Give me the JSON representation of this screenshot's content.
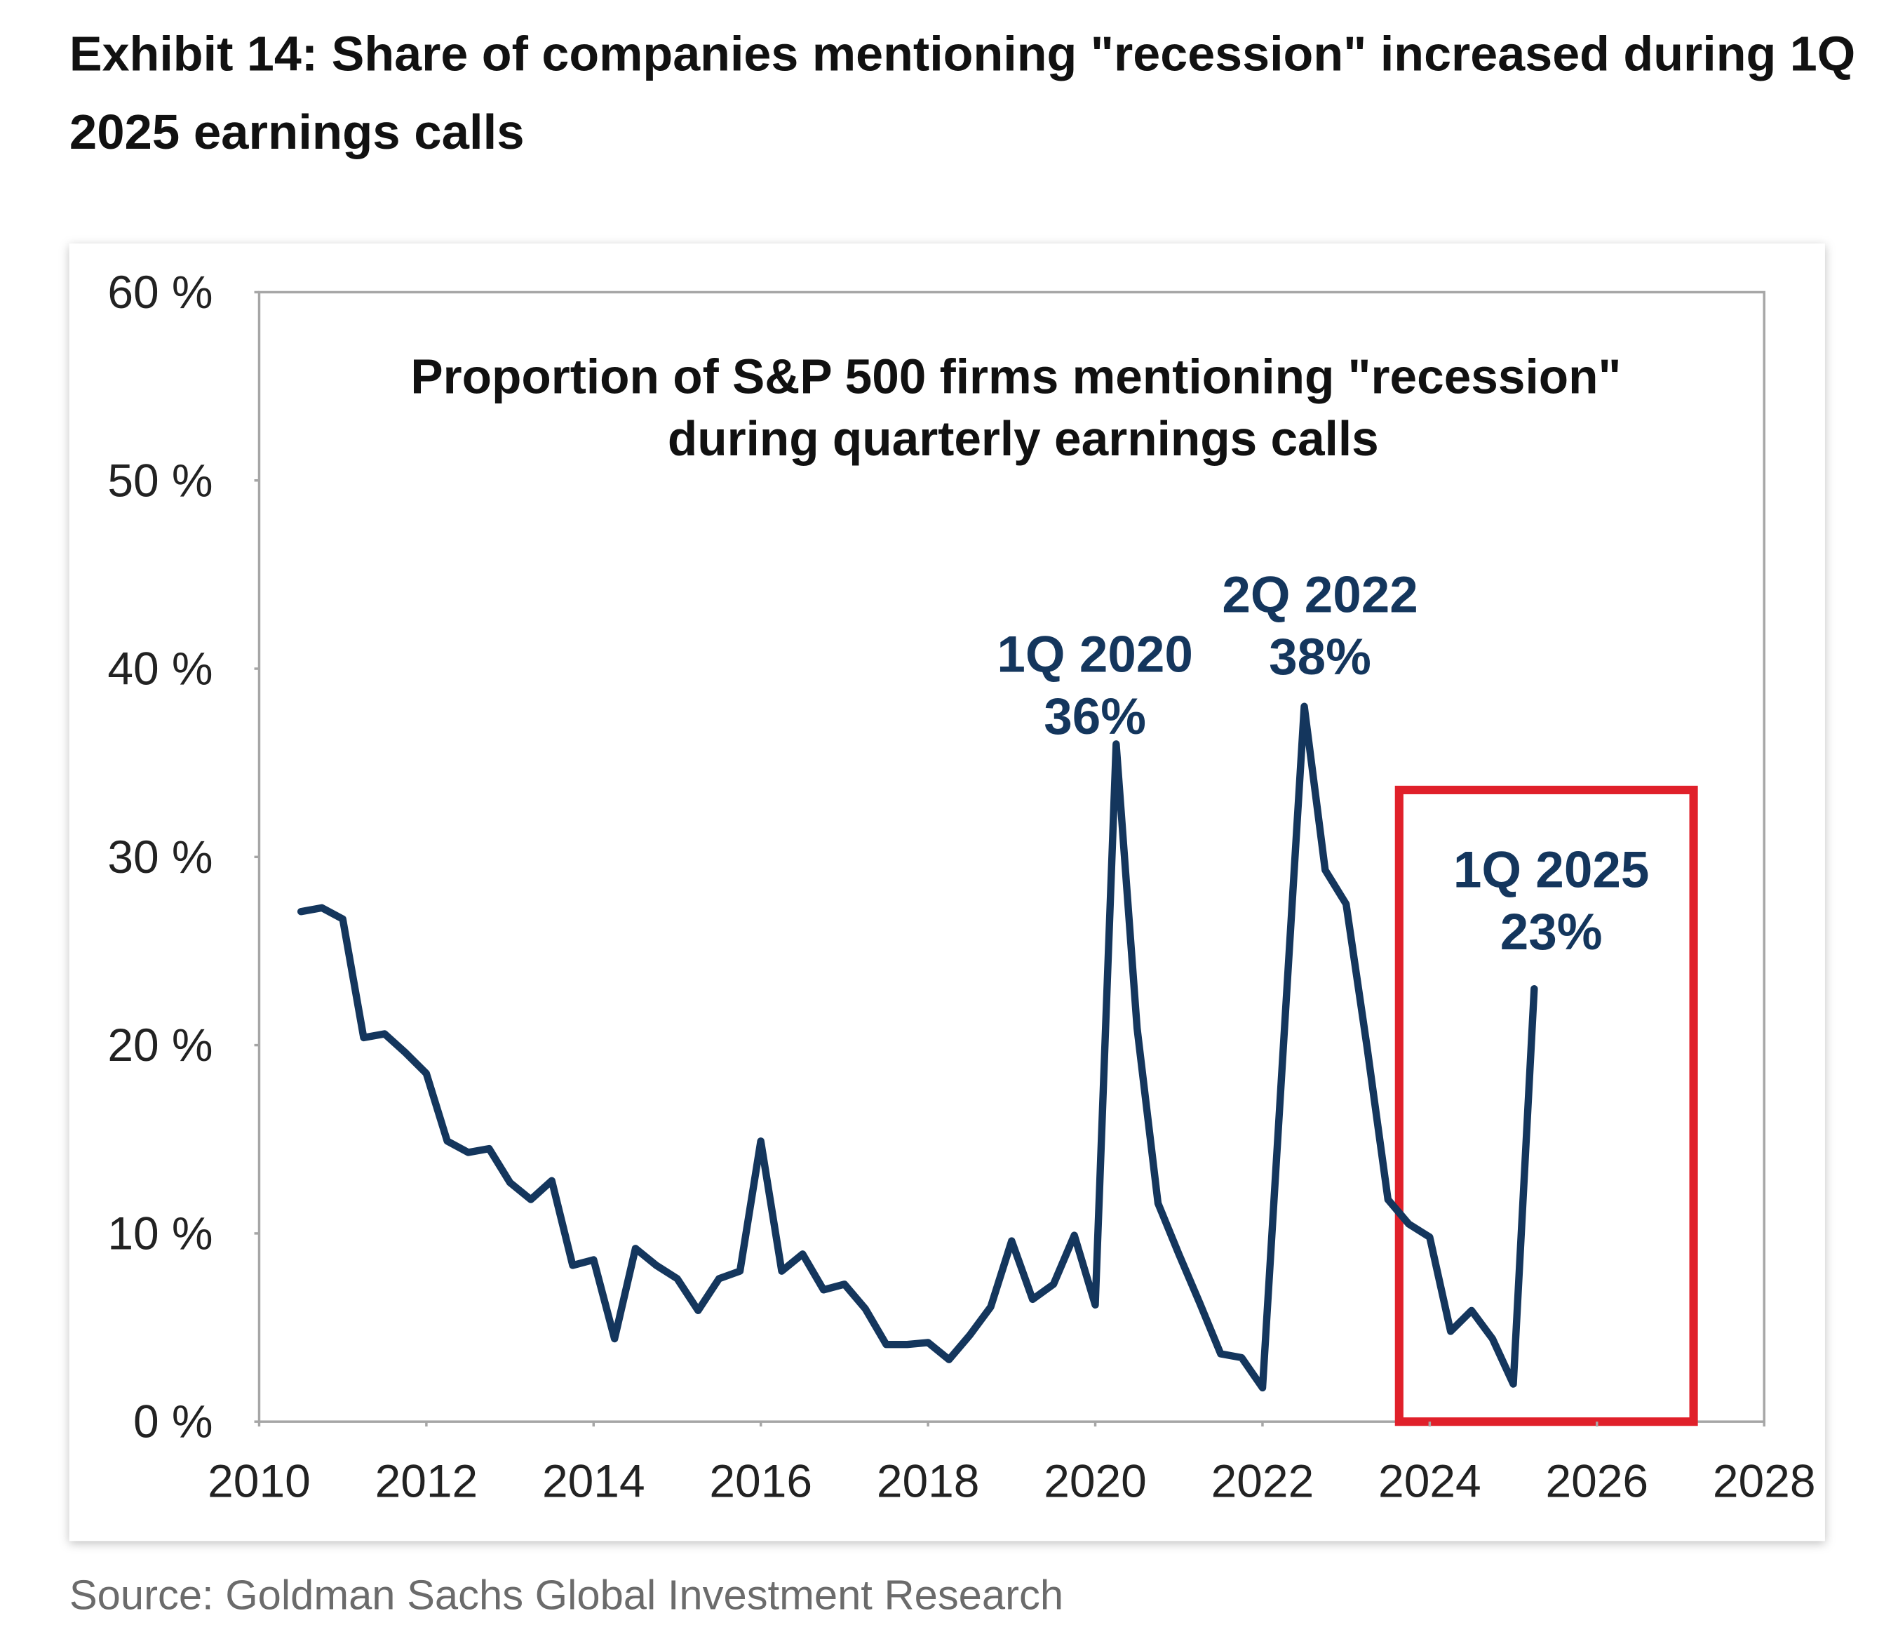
{
  "chart_data": {
    "type": "line",
    "title": [
      "Exhibit 14: Share of companies mentioning \"recession\" increased during 1Q",
      "2025 earnings calls"
    ],
    "subtitle": [
      "Proportion of S&P 500 firms mentioning \"recession\"",
      "during quarterly earnings calls"
    ],
    "source": "Source: Goldman Sachs Global Investment Research",
    "x": [
      2010.5,
      2010.75,
      2011,
      2011.25,
      2011.5,
      2011.75,
      2012,
      2012.25,
      2012.5,
      2012.75,
      2013,
      2013.25,
      2013.5,
      2013.75,
      2014,
      2014.25,
      2014.5,
      2014.75,
      2015,
      2015.25,
      2015.5,
      2015.75,
      2016,
      2016.25,
      2016.5,
      2016.75,
      2017,
      2017.25,
      2017.5,
      2017.75,
      2018,
      2018.25,
      2018.5,
      2018.75,
      2019,
      2019.25,
      2019.5,
      2019.75,
      2020,
      2020.25,
      2020.5,
      2020.75,
      2021,
      2021.25,
      2021.5,
      2021.75,
      2022,
      2022.25,
      2022.5,
      2022.75,
      2023,
      2023.25,
      2023.5,
      2023.75,
      2024,
      2024.25,
      2024.5,
      2024.75,
      2025,
      2025.25
    ],
    "series": [
      {
        "color": "#14365d",
        "values": [
          27.1,
          27.3,
          26.7,
          20.4,
          20.6,
          19.6,
          18.5,
          14.9,
          14.3,
          14.5,
          12.7,
          11.8,
          12.8,
          8.3,
          8.6,
          4.4,
          9.2,
          8.3,
          7.6,
          5.9,
          7.6,
          8.0,
          14.9,
          8.0,
          8.9,
          7.0,
          7.3,
          6.0,
          4.1,
          4.1,
          4.2,
          3.3,
          4.6,
          6.1,
          9.6,
          6.5,
          7.3,
          9.9,
          6.2,
          36,
          20.9,
          11.6,
          8.9,
          6.3,
          3.6,
          3.4,
          1.8,
          19.9,
          38,
          29.3,
          27.5,
          19.9,
          11.8,
          10.5,
          9.8,
          4.8,
          5.9,
          4.4,
          2.0,
          23
        ]
      }
    ],
    "xlim": [
      2010,
      2028
    ],
    "xticks": [
      2010,
      2012,
      2014,
      2016,
      2018,
      2020,
      2022,
      2024,
      2026,
      2028
    ],
    "ylim": [
      0,
      60
    ],
    "yticks": [
      {
        "value": 0,
        "label": "0 %"
      },
      {
        "value": 10,
        "label": "10 %"
      },
      {
        "value": 20,
        "label": "20 %"
      },
      {
        "value": 30,
        "label": "30 %"
      },
      {
        "value": 40,
        "label": "40 %"
      },
      {
        "value": 50,
        "label": "50 %"
      },
      {
        "value": 60,
        "label": "60 %"
      }
    ],
    "annotations": [
      [
        "1Q 2020",
        "36%"
      ],
      [
        "2Q 2022",
        "38%"
      ],
      [
        "1Q 2025",
        "23%"
      ]
    ],
    "highlight_color": "#e0202a",
    "grid": false
  }
}
